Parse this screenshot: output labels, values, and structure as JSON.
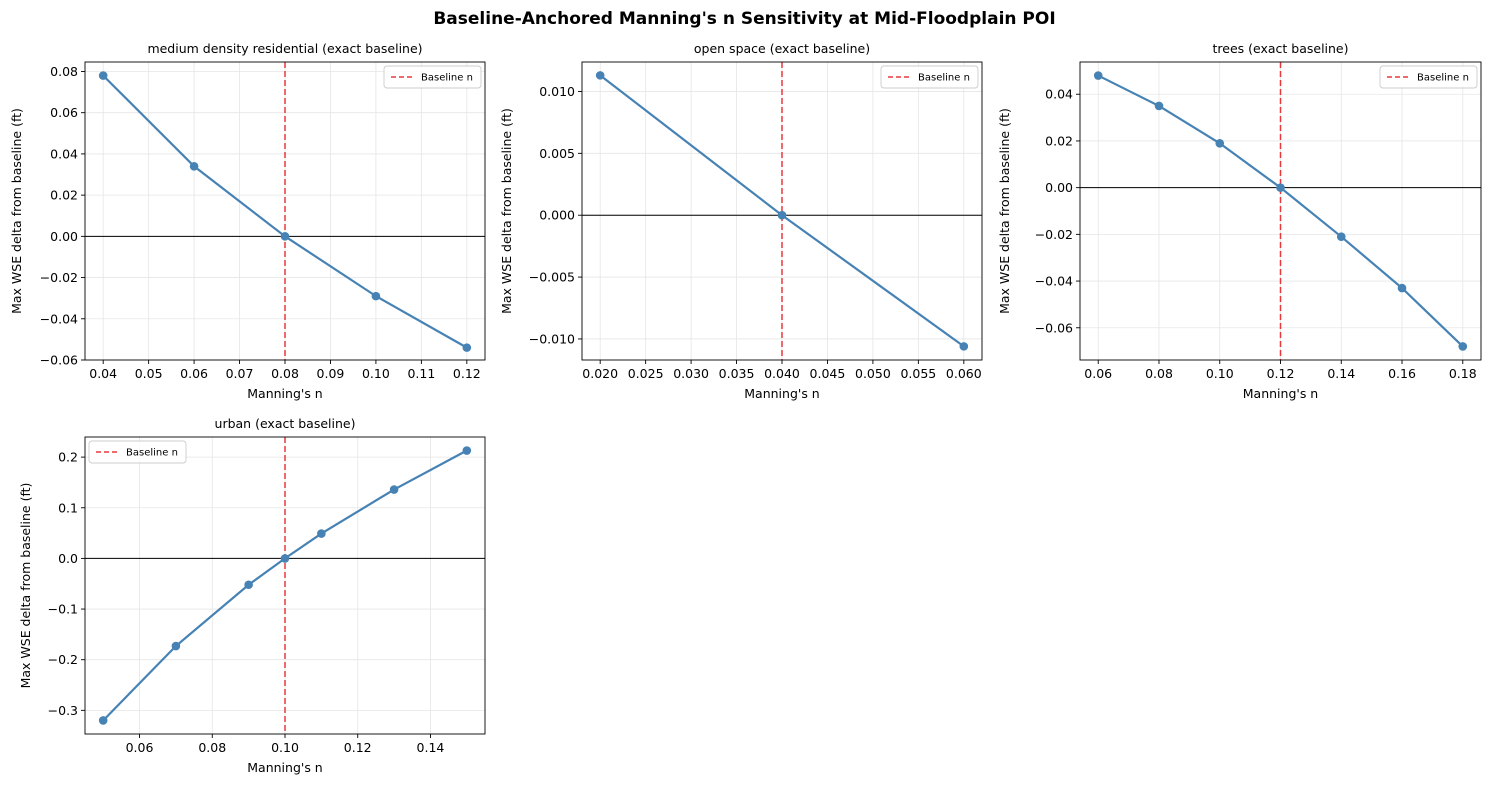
{
  "figure": {
    "title": "Baseline-Anchored Manning's n Sensitivity at Mid-Floodplain POI"
  },
  "colors": {
    "series": "#4682b4",
    "baseline": "#e8383d",
    "zero_line": "#000000",
    "grid": "#e6e6e6"
  },
  "chart_data": [
    {
      "type": "line",
      "title": "medium density residential (exact baseline)",
      "xlabel": "Manning's n",
      "ylabel": "Max WSE delta from baseline (ft)",
      "x": [
        0.04,
        0.06,
        0.08,
        0.1,
        0.12
      ],
      "y": [
        0.078,
        0.034,
        0.0,
        -0.029,
        -0.054
      ],
      "baseline_n": 0.08,
      "xlim": [
        0.036,
        0.124
      ],
      "ylim": [
        -0.06,
        0.0846
      ],
      "xticks": [
        0.04,
        0.05,
        0.06,
        0.07,
        0.08,
        0.09,
        0.1,
        0.11,
        0.12
      ],
      "xtick_labels": [
        "0.04",
        "0.05",
        "0.06",
        "0.07",
        "0.08",
        "0.09",
        "0.10",
        "0.11",
        "0.12"
      ],
      "yticks": [
        -0.06,
        -0.04,
        -0.02,
        0.0,
        0.02,
        0.04,
        0.06,
        0.08
      ],
      "ytick_labels": [
        "−0.06",
        "−0.04",
        "−0.02",
        "0.00",
        "0.02",
        "0.04",
        "0.06",
        "0.08"
      ],
      "legend": {
        "label": "Baseline n",
        "position": "top-right"
      },
      "grid": true
    },
    {
      "type": "line",
      "title": "open space (exact baseline)",
      "xlabel": "Manning's n",
      "ylabel": "Max WSE delta from baseline (ft)",
      "x": [
        0.02,
        0.04,
        0.06
      ],
      "y": [
        0.0113,
        0.0,
        -0.0106
      ],
      "baseline_n": 0.04,
      "xlim": [
        0.018,
        0.062
      ],
      "ylim": [
        -0.0117,
        0.01238
      ],
      "xticks": [
        0.02,
        0.025,
        0.03,
        0.035,
        0.04,
        0.045,
        0.05,
        0.055,
        0.06
      ],
      "xtick_labels": [
        "0.020",
        "0.025",
        "0.030",
        "0.035",
        "0.040",
        "0.045",
        "0.050",
        "0.055",
        "0.060"
      ],
      "yticks": [
        -0.01,
        -0.005,
        0.0,
        0.005,
        0.01
      ],
      "ytick_labels": [
        "−0.010",
        "−0.005",
        "0.000",
        "0.005",
        "0.010"
      ],
      "legend": {
        "label": "Baseline n",
        "position": "top-right"
      },
      "grid": true
    },
    {
      "type": "line",
      "title": "trees (exact baseline)",
      "xlabel": "Manning's n",
      "ylabel": "Max WSE delta from baseline (ft)",
      "x": [
        0.06,
        0.08,
        0.1,
        0.12,
        0.14,
        0.16,
        0.18
      ],
      "y": [
        0.048,
        0.035,
        0.019,
        0.0,
        -0.021,
        -0.043,
        -0.068
      ],
      "baseline_n": 0.12,
      "xlim": [
        0.054,
        0.186
      ],
      "ylim": [
        -0.0738,
        0.0538
      ],
      "xticks": [
        0.06,
        0.08,
        0.1,
        0.12,
        0.14,
        0.16,
        0.18
      ],
      "xtick_labels": [
        "0.06",
        "0.08",
        "0.10",
        "0.12",
        "0.14",
        "0.16",
        "0.18"
      ],
      "yticks": [
        -0.06,
        -0.04,
        -0.02,
        0.0,
        0.02,
        0.04
      ],
      "ytick_labels": [
        "−0.06",
        "−0.04",
        "−0.02",
        "0.00",
        "0.02",
        "0.04"
      ],
      "legend": {
        "label": "Baseline n",
        "position": "top-right"
      },
      "grid": true
    },
    {
      "type": "line",
      "title": "urban (exact baseline)",
      "xlabel": "Manning's n",
      "ylabel": "Max WSE delta from baseline (ft)",
      "x": [
        0.05,
        0.07,
        0.09,
        0.1,
        0.11,
        0.13,
        0.15
      ],
      "y": [
        -0.32,
        -0.173,
        -0.052,
        0.0,
        0.049,
        0.136,
        0.213
      ],
      "baseline_n": 0.1,
      "xlim": [
        0.045,
        0.155
      ],
      "ylim": [
        -0.3467,
        0.2397
      ],
      "xticks": [
        0.06,
        0.08,
        0.1,
        0.12,
        0.14
      ],
      "xtick_labels": [
        "0.06",
        "0.08",
        "0.10",
        "0.12",
        "0.14"
      ],
      "yticks": [
        -0.3,
        -0.2,
        -0.1,
        0.0,
        0.1,
        0.2
      ],
      "ytick_labels": [
        "−0.3",
        "−0.2",
        "−0.1",
        "0.0",
        "0.1",
        "0.2"
      ],
      "legend": {
        "label": "Baseline n",
        "position": "top-left"
      },
      "grid": true
    }
  ]
}
